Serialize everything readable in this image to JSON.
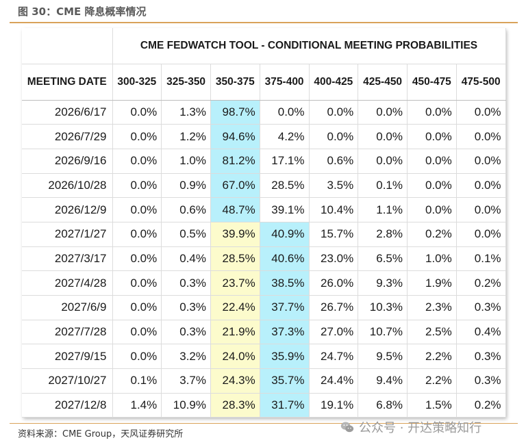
{
  "figure_title": "图 30：CME 降息概率情况",
  "table": {
    "tool_title": "CME FEDWATCH TOOL - CONDITIONAL MEETING PROBABILITIES",
    "date_header": "MEETING DATE",
    "columns": [
      "300-325",
      "325-350",
      "350-375",
      "375-400",
      "400-425",
      "425-450",
      "450-475",
      "475-500"
    ],
    "rows": [
      {
        "date": "2026/6/17",
        "values": [
          "0.0%",
          "1.3%",
          "98.7%",
          "0.0%",
          "0.0%",
          "0.0%",
          "0.0%",
          "0.0%"
        ],
        "highlight": {
          "2": "blue"
        }
      },
      {
        "date": "2026/7/29",
        "values": [
          "0.0%",
          "1.2%",
          "94.6%",
          "4.2%",
          "0.0%",
          "0.0%",
          "0.0%",
          "0.0%"
        ],
        "highlight": {
          "2": "blue"
        }
      },
      {
        "date": "2026/9/16",
        "values": [
          "0.0%",
          "1.0%",
          "81.2%",
          "17.1%",
          "0.6%",
          "0.0%",
          "0.0%",
          "0.0%"
        ],
        "highlight": {
          "2": "blue"
        }
      },
      {
        "date": "2026/10/28",
        "values": [
          "0.0%",
          "0.9%",
          "67.0%",
          "28.5%",
          "3.5%",
          "0.1%",
          "0.0%",
          "0.0%"
        ],
        "highlight": {
          "2": "blue"
        }
      },
      {
        "date": "2026/12/9",
        "values": [
          "0.0%",
          "0.6%",
          "48.7%",
          "39.1%",
          "10.4%",
          "1.1%",
          "0.0%",
          "0.0%"
        ],
        "highlight": {
          "2": "blue"
        }
      },
      {
        "date": "2027/1/27",
        "values": [
          "0.0%",
          "0.5%",
          "39.9%",
          "40.9%",
          "15.7%",
          "2.8%",
          "0.2%",
          "0.0%"
        ],
        "highlight": {
          "2": "yellow",
          "3": "blue"
        }
      },
      {
        "date": "2027/3/17",
        "values": [
          "0.0%",
          "0.4%",
          "28.5%",
          "40.6%",
          "23.0%",
          "6.5%",
          "1.0%",
          "0.1%"
        ],
        "highlight": {
          "2": "yellow",
          "3": "blue"
        }
      },
      {
        "date": "2027/4/28",
        "values": [
          "0.0%",
          "0.3%",
          "23.7%",
          "38.5%",
          "26.0%",
          "9.3%",
          "1.9%",
          "0.2%"
        ],
        "highlight": {
          "2": "yellow",
          "3": "blue"
        }
      },
      {
        "date": "2027/6/9",
        "values": [
          "0.0%",
          "0.3%",
          "22.4%",
          "37.7%",
          "26.7%",
          "10.3%",
          "2.3%",
          "0.3%"
        ],
        "highlight": {
          "2": "yellow",
          "3": "blue"
        }
      },
      {
        "date": "2027/7/28",
        "values": [
          "0.0%",
          "0.3%",
          "21.9%",
          "37.3%",
          "27.0%",
          "10.7%",
          "2.5%",
          "0.4%"
        ],
        "highlight": {
          "2": "yellow",
          "3": "blue"
        }
      },
      {
        "date": "2027/9/15",
        "values": [
          "0.0%",
          "3.2%",
          "24.0%",
          "35.9%",
          "24.7%",
          "9.5%",
          "2.2%",
          "0.3%"
        ],
        "highlight": {
          "2": "yellow",
          "3": "blue"
        }
      },
      {
        "date": "2027/10/27",
        "values": [
          "0.1%",
          "3.7%",
          "24.3%",
          "35.7%",
          "24.4%",
          "9.4%",
          "2.2%",
          "0.3%"
        ],
        "highlight": {
          "2": "yellow",
          "3": "blue"
        }
      },
      {
        "date": "2027/12/8",
        "values": [
          "1.4%",
          "10.9%",
          "28.3%",
          "31.7%",
          "19.1%",
          "6.8%",
          "1.5%",
          "0.2%"
        ],
        "highlight": {
          "2": "yellow",
          "3": "blue"
        }
      }
    ]
  },
  "colors": {
    "highlight_blue": "#b8f0fb",
    "highlight_yellow": "#fcfbcc",
    "rule": "#d9a25a"
  },
  "source": "资料来源：CME Group，天风证券研究所",
  "watermark": {
    "icon": "wechat-icon",
    "text": "公众号 · 开达策略知行"
  }
}
